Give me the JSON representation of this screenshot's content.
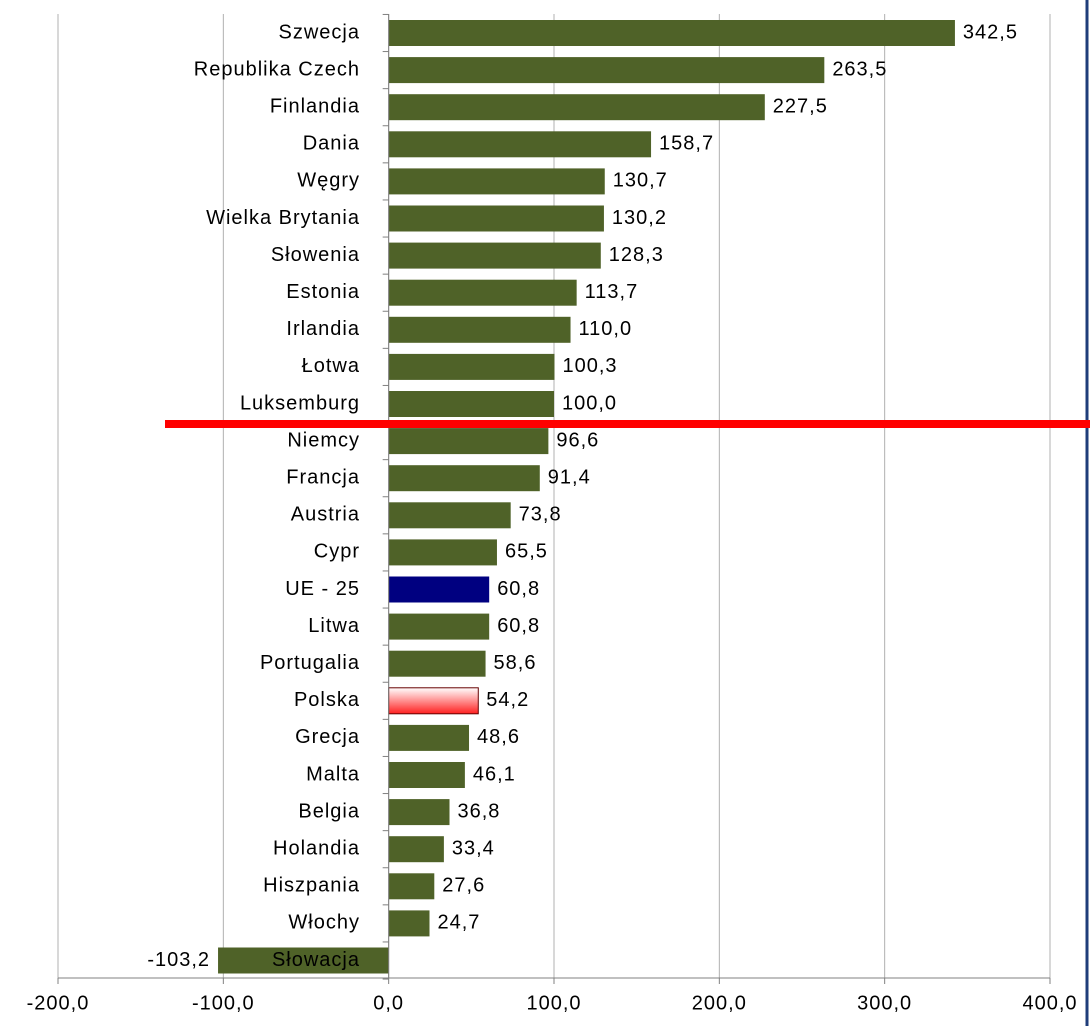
{
  "chart_data": {
    "type": "barh",
    "categories": [
      "Szwecja",
      "Republika Czech",
      "Finlandia",
      "Dania",
      "Węgry",
      "Wielka Brytania",
      "Słowenia",
      "Estonia",
      "Irlandia",
      "Łotwa",
      "Luksemburg",
      "Niemcy",
      "Francja",
      "Austria",
      "Cypr",
      "UE  - 25",
      "Litwa",
      "Portugalia",
      "Polska",
      "Grecja",
      "Malta",
      "Belgia",
      "Holandia",
      "Hiszpania",
      "Włochy",
      "Słowacja"
    ],
    "values": [
      342.5,
      263.5,
      227.5,
      158.7,
      130.7,
      130.2,
      128.3,
      113.7,
      110.0,
      100.3,
      100.0,
      96.6,
      91.4,
      73.8,
      65.5,
      60.8,
      60.8,
      58.6,
      54.2,
      48.6,
      46.1,
      36.8,
      33.4,
      27.6,
      24.7,
      -103.2
    ],
    "value_labels": [
      "342,5",
      "263,5",
      "227,5",
      "158,7",
      "130,7",
      "130,2",
      "128,3",
      "113,7",
      "110,0",
      "100,3",
      "100,0",
      "96,6",
      "91,4",
      "73,8",
      "65,5",
      "60,8",
      "60,8",
      "58,6",
      "54,2",
      "48,6",
      "46,1",
      "36,8",
      "33,4",
      "27,6",
      "24,7",
      "-103,2"
    ],
    "colors": [
      "#4f6228",
      "#4f6228",
      "#4f6228",
      "#4f6228",
      "#4f6228",
      "#4f6228",
      "#4f6228",
      "#4f6228",
      "#4f6228",
      "#4f6228",
      "#4f6228",
      "#4f6228",
      "#4f6228",
      "#4f6228",
      "#4f6228",
      "#000080",
      "#4f6228",
      "#4f6228",
      "#ff2020",
      "#4f6228",
      "#4f6228",
      "#4f6228",
      "#4f6228",
      "#4f6228",
      "#4f6228",
      "#4f6228"
    ],
    "xlim": [
      -200,
      400
    ],
    "xticks": [
      {
        "value": -200,
        "label": "-200,0"
      },
      {
        "value": -100,
        "label": "-100,0"
      },
      {
        "value": 0,
        "label": "0,0"
      },
      {
        "value": 100,
        "label": "100,0"
      },
      {
        "value": 200,
        "label": "200,0"
      },
      {
        "value": 300,
        "label": "300,0"
      },
      {
        "value": 400,
        "label": "400,0"
      }
    ],
    "grid": true
  }
}
